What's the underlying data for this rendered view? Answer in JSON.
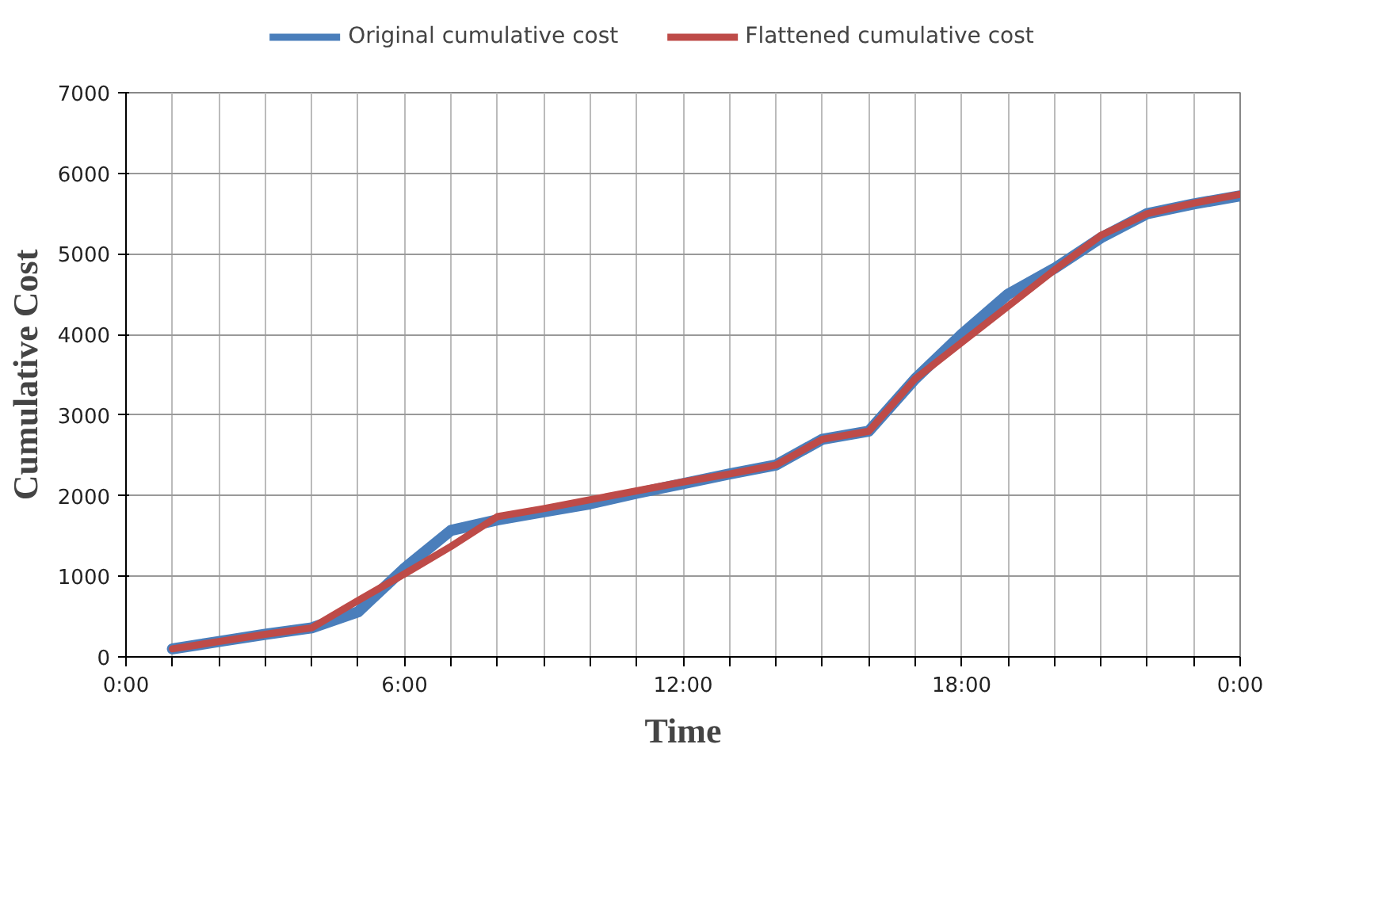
{
  "chart_data": {
    "type": "line",
    "xlabel": "Time",
    "ylabel": "Cumulative Cost",
    "x": [
      1,
      2,
      3,
      4,
      5,
      6,
      7,
      8,
      9,
      10,
      11,
      12,
      13,
      14,
      15,
      16,
      17,
      18,
      19,
      20,
      21,
      22,
      23,
      24
    ],
    "series": [
      {
        "name": "Original cumulative cost",
        "color": "#4a7ebb",
        "values": [
          100,
          190,
          280,
          360,
          560,
          1100,
          1570,
          1700,
          1800,
          1900,
          2030,
          2150,
          2270,
          2380,
          2700,
          2800,
          3450,
          4000,
          4500,
          4820,
          5200,
          5500,
          5620,
          5720
        ]
      },
      {
        "name": "Flattened cumulative cost",
        "color": "#be4b48",
        "values": [
          100,
          190,
          280,
          360,
          700,
          1030,
          1370,
          1740,
          1840,
          1950,
          2060,
          2170,
          2270,
          2380,
          2700,
          2800,
          3450,
          3900,
          4350,
          4800,
          5230,
          5500,
          5630,
          5740
        ]
      }
    ],
    "xlim": [
      0,
      24
    ],
    "xticks": [
      {
        "value": 0,
        "label": "0:00"
      },
      {
        "value": 1,
        "label": null
      },
      {
        "value": 2,
        "label": null
      },
      {
        "value": 3,
        "label": null
      },
      {
        "value": 4,
        "label": null
      },
      {
        "value": 5,
        "label": null
      },
      {
        "value": 6,
        "label": "6:00"
      },
      {
        "value": 7,
        "label": null
      },
      {
        "value": 8,
        "label": null
      },
      {
        "value": 9,
        "label": null
      },
      {
        "value": 10,
        "label": null
      },
      {
        "value": 11,
        "label": null
      },
      {
        "value": 12,
        "label": "12:00"
      },
      {
        "value": 13,
        "label": null
      },
      {
        "value": 14,
        "label": null
      },
      {
        "value": 15,
        "label": null
      },
      {
        "value": 16,
        "label": null
      },
      {
        "value": 17,
        "label": null
      },
      {
        "value": 18,
        "label": "18:00"
      },
      {
        "value": 19,
        "label": null
      },
      {
        "value": 20,
        "label": null
      },
      {
        "value": 21,
        "label": null
      },
      {
        "value": 22,
        "label": null
      },
      {
        "value": 23,
        "label": null
      },
      {
        "value": 24,
        "label": "0:00"
      }
    ],
    "ylim": [
      0,
      7000
    ],
    "yticks": [
      0,
      1000,
      2000,
      3000,
      4000,
      5000,
      6000,
      7000
    ],
    "grid": true,
    "legend": "top",
    "marker": "none",
    "line_style": "solid"
  }
}
